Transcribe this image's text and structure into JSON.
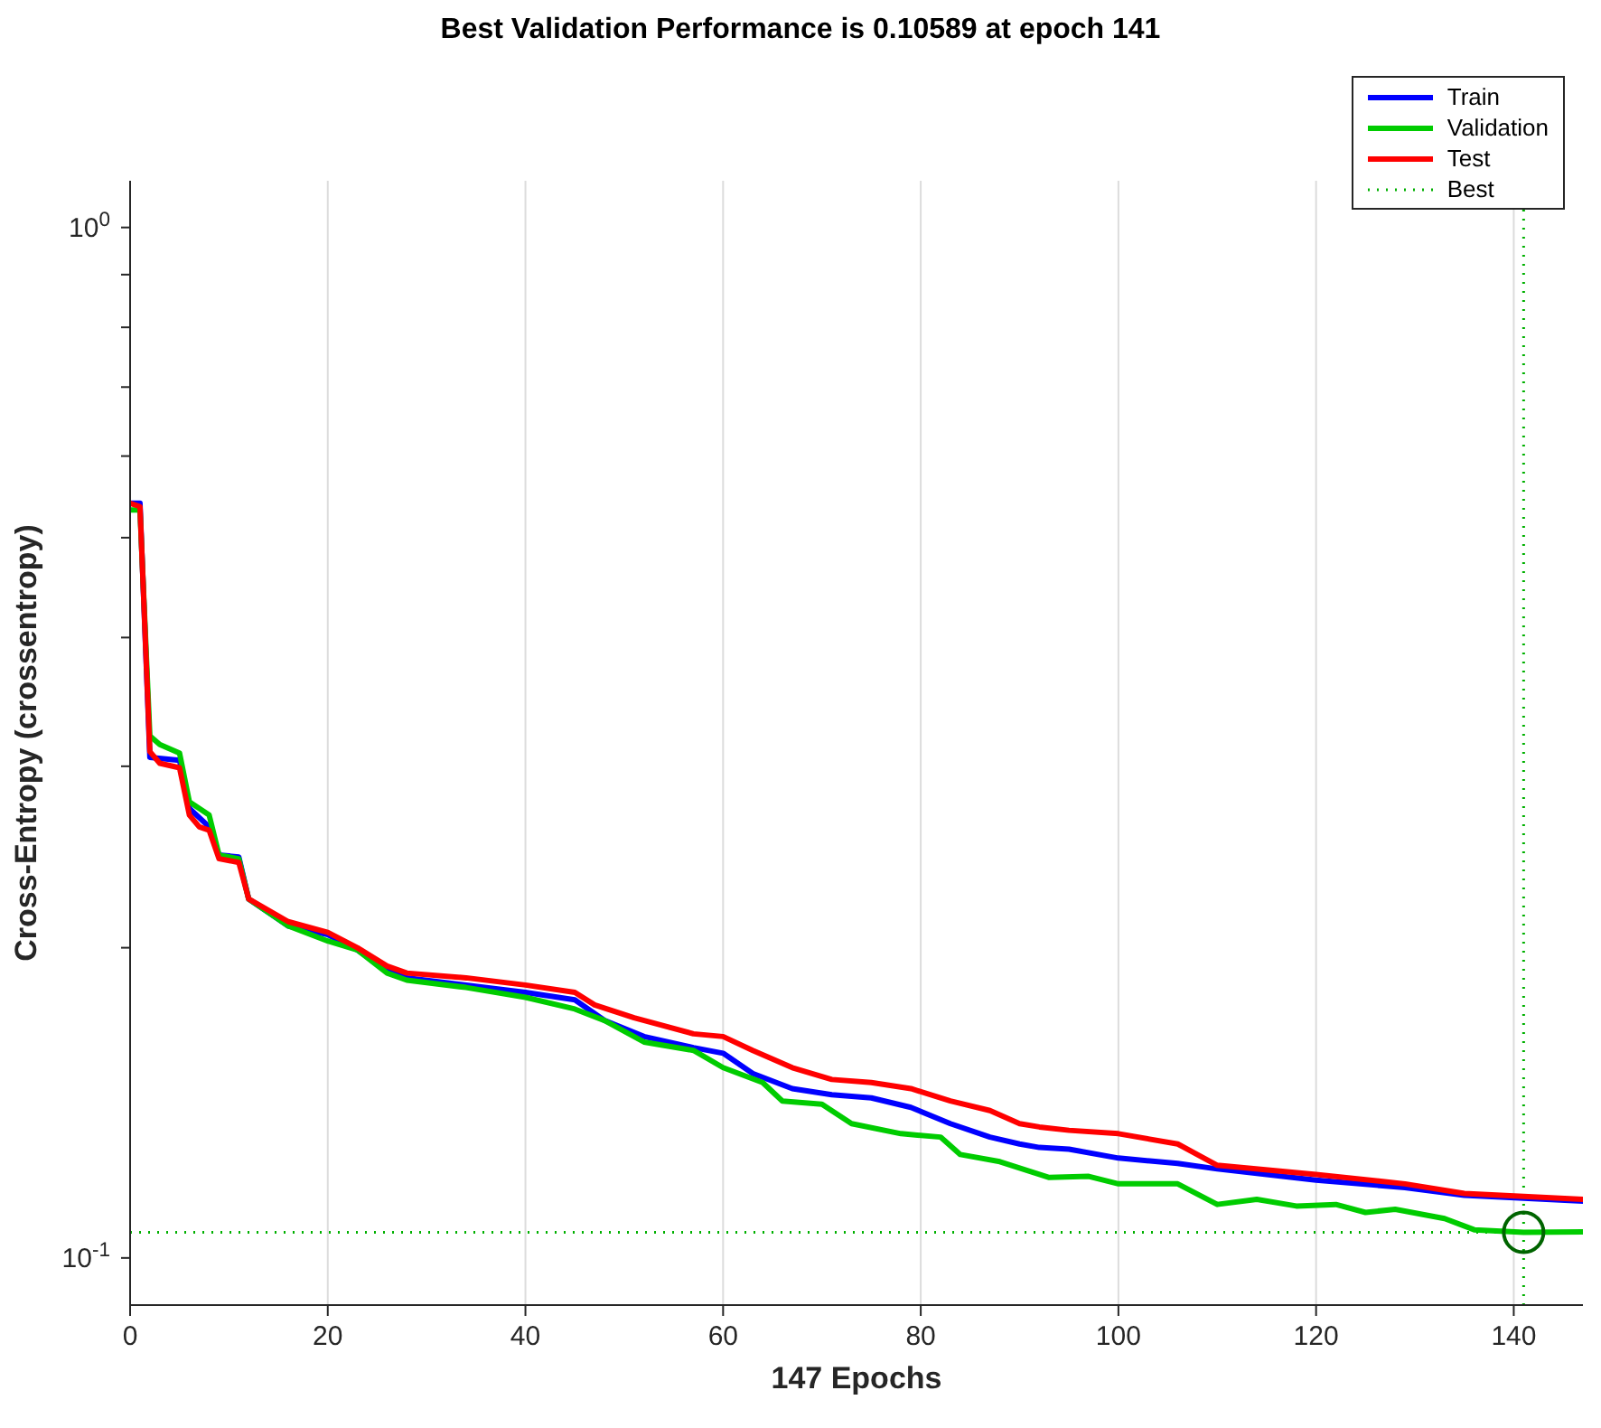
{
  "chart_data": {
    "type": "line",
    "title": "Best Validation Performance is 0.10589 at epoch 141",
    "xlabel": "147 Epochs",
    "ylabel": "Cross-Entropy  (crossentropy)",
    "xlim": [
      0,
      147
    ],
    "xticks": [
      0,
      20,
      40,
      60,
      80,
      100,
      120,
      140
    ],
    "ylim": [
      0.09,
      1.11
    ],
    "yticks": [
      {
        "value": 0.1,
        "label": "10$^{-1}$"
      },
      {
        "value": 0.2,
        "label": null
      },
      {
        "value": 0.3,
        "label": null
      },
      {
        "value": 0.4,
        "label": null
      },
      {
        "value": 0.5,
        "label": null
      },
      {
        "value": 0.6,
        "label": null
      },
      {
        "value": 0.7,
        "label": null
      },
      {
        "value": 0.8,
        "label": null
      },
      {
        "value": 0.9,
        "label": null
      },
      {
        "value": 1,
        "label": "10$^{0}$"
      }
    ],
    "log": "y",
    "grid": true,
    "legend": "top right",
    "marker": "none",
    "line_style": "solid",
    "series": [
      {
        "name": "Train",
        "color": "#0000ff",
        "x": [
          0,
          1,
          2,
          5,
          6,
          8,
          9,
          11,
          12,
          16,
          20,
          23,
          26,
          28,
          34,
          40,
          45,
          48,
          52,
          57,
          60,
          63,
          67,
          71,
          75,
          79,
          83,
          87,
          90,
          92,
          95,
          100,
          106,
          110,
          120,
          129,
          135,
          147
        ],
        "values": [
          0.54,
          0.54,
          0.306,
          0.304,
          0.273,
          0.262,
          0.246,
          0.245,
          0.223,
          0.21,
          0.206,
          0.199,
          0.19,
          0.187,
          0.184,
          0.181,
          0.178,
          0.17,
          0.164,
          0.16,
          0.158,
          0.151,
          0.146,
          0.144,
          0.143,
          0.14,
          0.135,
          0.131,
          0.129,
          0.128,
          0.1275,
          0.125,
          0.1235,
          0.122,
          0.119,
          0.117,
          0.115,
          0.1135
        ]
      },
      {
        "name": "Validation",
        "color": "#00cc00",
        "x": [
          0,
          1,
          2,
          3,
          5,
          6,
          8,
          9,
          11,
          12,
          16,
          20,
          23,
          26,
          28,
          34,
          40,
          45,
          48,
          52,
          57,
          60,
          64,
          66,
          70,
          73,
          78,
          82,
          84,
          88,
          93,
          97,
          100,
          106,
          110,
          114,
          118,
          122,
          125,
          128,
          133,
          136,
          141,
          147
        ],
        "values": [
          0.532,
          0.532,
          0.321,
          0.315,
          0.309,
          0.277,
          0.269,
          0.246,
          0.244,
          0.223,
          0.21,
          0.203,
          0.199,
          0.189,
          0.186,
          0.183,
          0.179,
          0.1744,
          0.17,
          0.162,
          0.159,
          0.153,
          0.148,
          0.142,
          0.141,
          0.135,
          0.132,
          0.131,
          0.126,
          0.124,
          0.1197,
          0.12,
          0.118,
          0.118,
          0.1127,
          0.114,
          0.1123,
          0.1127,
          0.1107,
          0.1115,
          0.1092,
          0.1065,
          0.10589,
          0.106
        ]
      },
      {
        "name": "Test",
        "color": "#ff0000",
        "x": [
          0,
          1,
          2,
          3,
          5,
          6,
          7,
          8,
          9,
          11,
          12,
          16,
          20,
          23,
          26,
          28,
          34,
          40,
          45,
          47,
          51,
          57,
          60,
          63,
          67,
          71,
          75,
          79,
          83,
          87,
          90,
          92,
          95,
          100,
          106,
          110,
          120,
          129,
          135,
          147
        ],
        "values": [
          0.54,
          0.536,
          0.31,
          0.302,
          0.299,
          0.269,
          0.262,
          0.26,
          0.244,
          0.242,
          0.223,
          0.212,
          0.207,
          0.2,
          0.192,
          0.189,
          0.187,
          0.184,
          0.181,
          0.176,
          0.171,
          0.165,
          0.164,
          0.159,
          0.153,
          0.149,
          0.148,
          0.146,
          0.142,
          0.139,
          0.135,
          0.134,
          0.133,
          0.132,
          0.129,
          0.123,
          0.1205,
          0.118,
          0.1155,
          0.114
        ]
      },
      {
        "type": "scatter",
        "marker": "circle",
        "color": "#006400",
        "x": [
          141
        ],
        "values": [
          0.10589
        ]
      }
    ],
    "ref_lines": [
      {
        "axis": "x",
        "value": 141,
        "label": "Best",
        "color": "#00b000",
        "line_style": "dotted"
      },
      {
        "axis": "y",
        "value": 0.10589,
        "color": "#00b000",
        "line_style": "dotted"
      }
    ]
  }
}
